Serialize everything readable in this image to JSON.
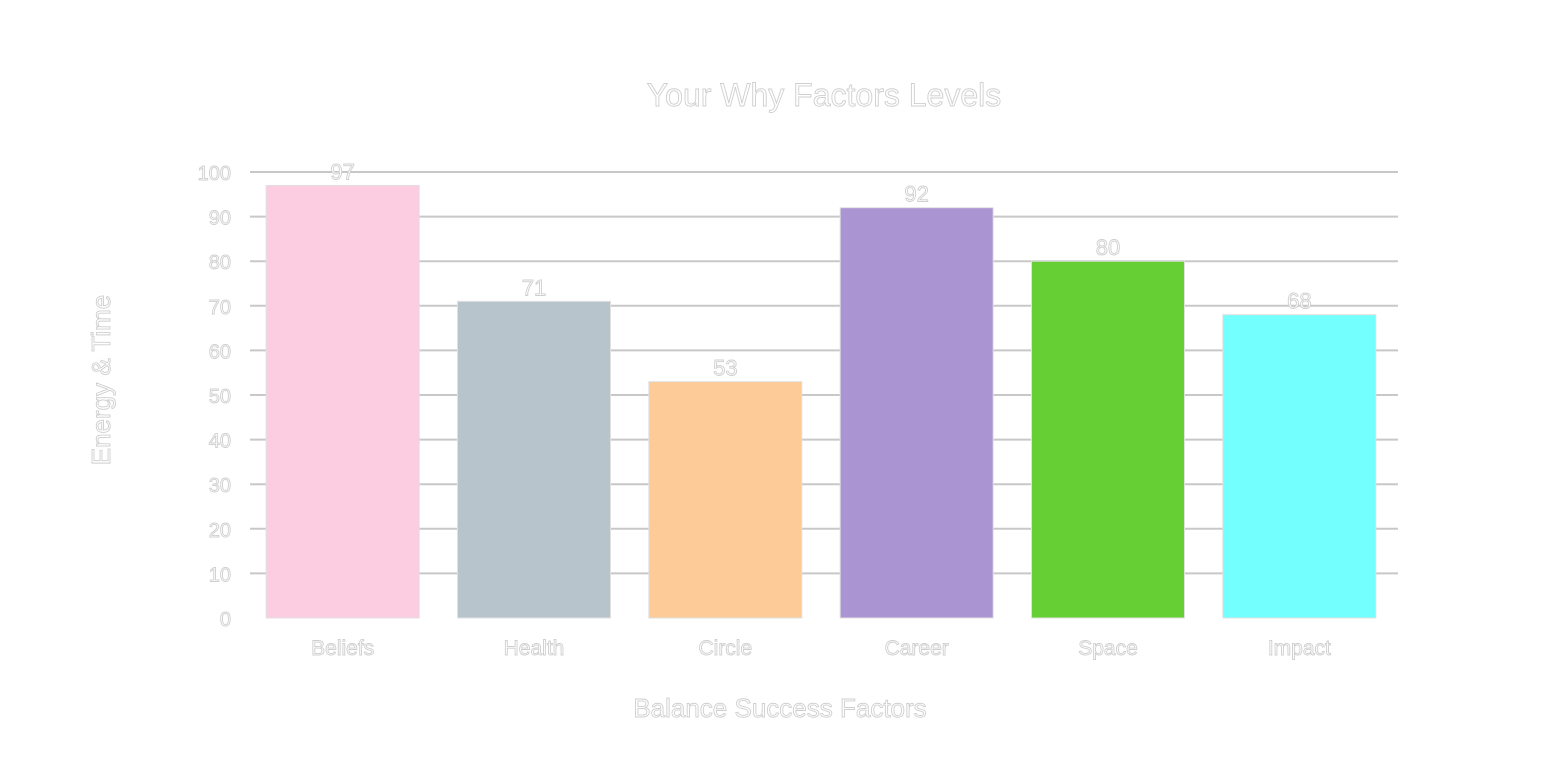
{
  "chart_data": {
    "type": "bar",
    "title": "Your Why Factors Levels",
    "xlabel": "Balance Success Factors",
    "ylabel": "Energy & Time",
    "categories": [
      "Beliefs",
      "Health",
      "Circle",
      "Career",
      "Space",
      "Impact"
    ],
    "values": [
      97,
      71,
      53,
      92,
      80,
      68
    ],
    "colors": [
      "#fccce0",
      "#b7c4cc",
      "#fdcb98",
      "#aa94d1",
      "#66cf33",
      "#72fffe"
    ],
    "ylim": [
      0,
      100
    ],
    "yticks": [
      0,
      10,
      20,
      30,
      40,
      50,
      60,
      70,
      80,
      90,
      100
    ],
    "grid": true,
    "data_labels": true,
    "legend": "none"
  }
}
